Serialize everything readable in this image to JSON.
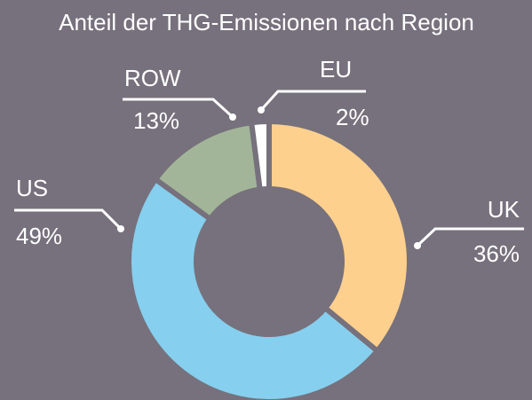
{
  "chart_data": {
    "type": "donut",
    "title": "Anteil der THG-Emissionen nach Region",
    "categories": [
      "UK",
      "US",
      "ROW",
      "EU"
    ],
    "values": [
      36,
      49,
      13,
      2
    ],
    "value_labels": [
      "36%",
      "49%",
      "13%",
      "2%"
    ],
    "colors": [
      "#fdd08e",
      "#86cfee",
      "#a2b598",
      "#ffffff"
    ]
  }
}
